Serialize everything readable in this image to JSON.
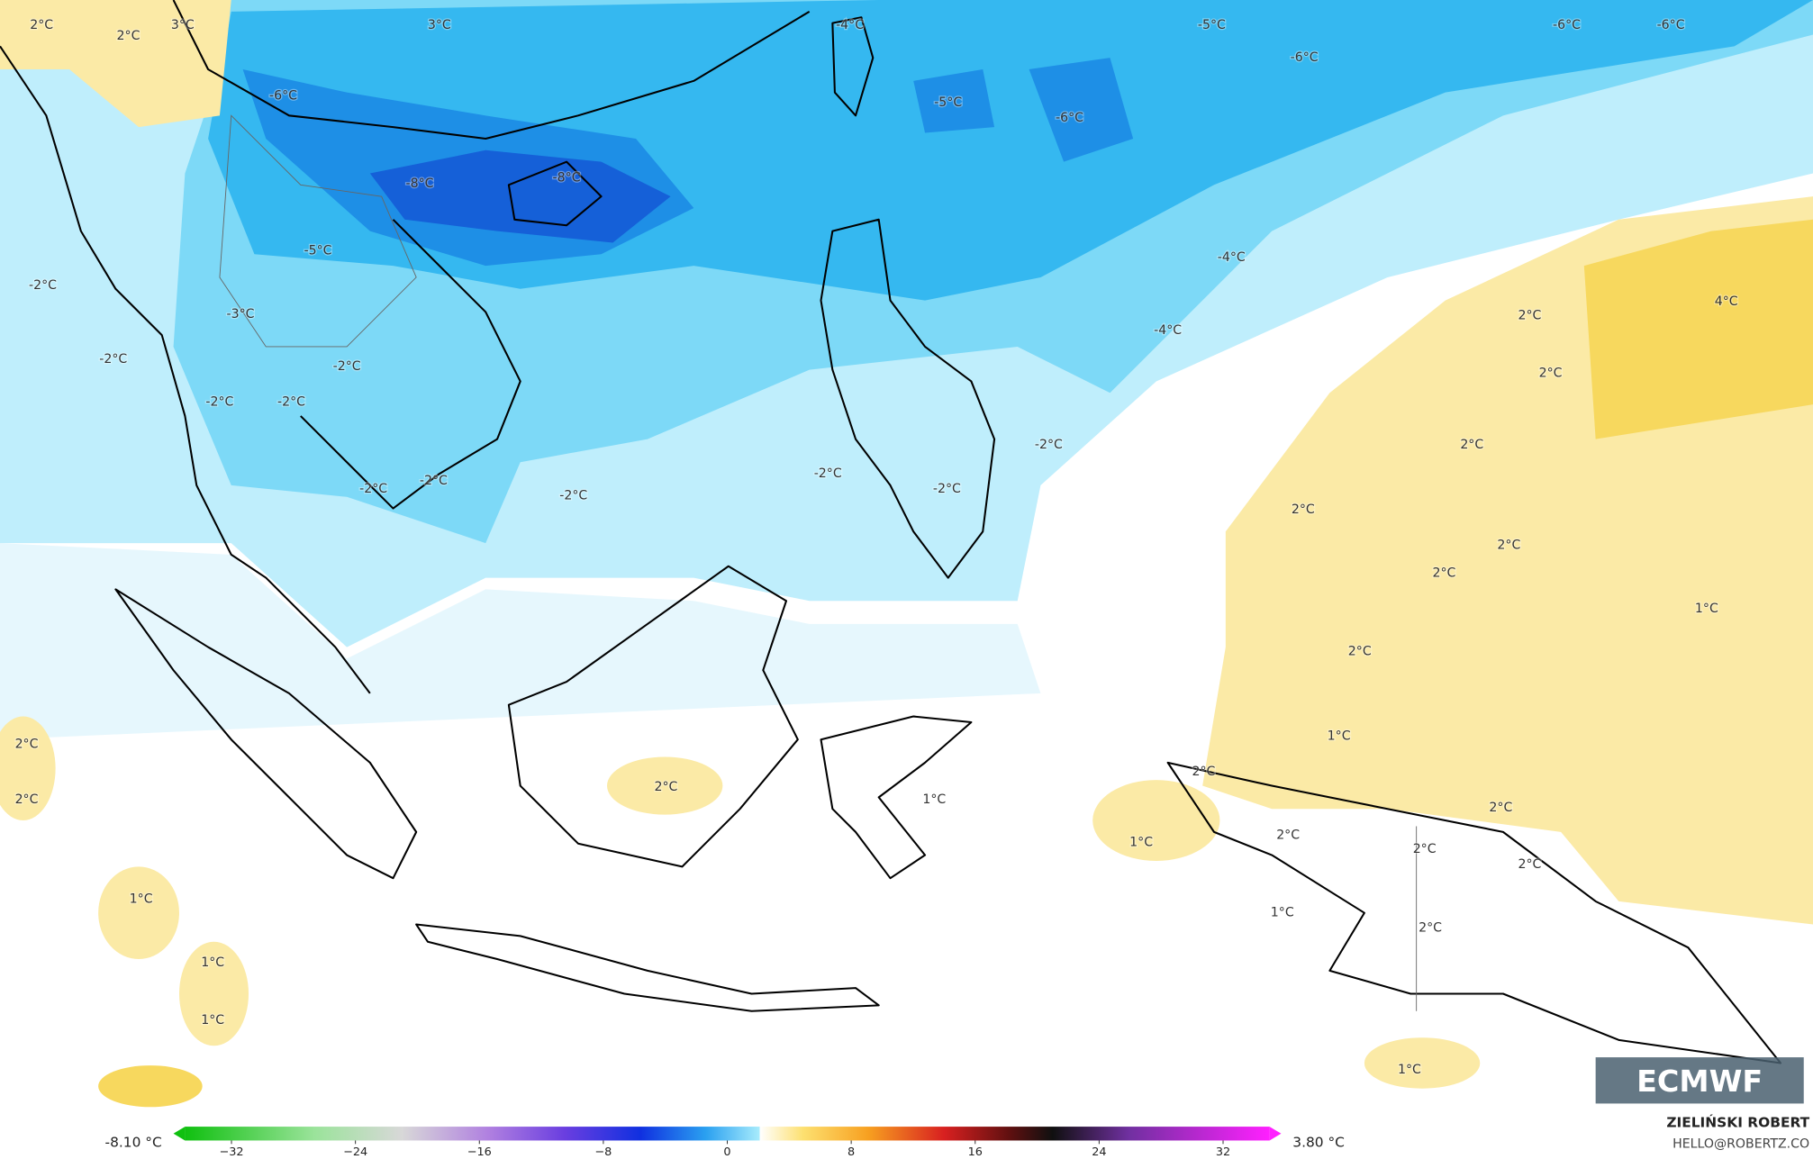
{
  "map": {
    "labels": [
      "2°C",
      "3°C",
      "2°C",
      "3°C",
      "-4°C",
      "-5°C",
      "-6°C",
      "-6°C",
      "-6°C",
      "-6°C",
      "-5°C",
      "-6°C",
      "-8°C",
      "-8°C",
      "-5°C",
      "-4°C",
      "-2°C",
      "-3°C",
      "4°C",
      "2°C",
      "-4°C",
      "2°C",
      "-2°C",
      "-2°C",
      "-2°C",
      "-2°C",
      "-2°C",
      "2°C",
      "-2°C",
      "-2°C",
      "-2°C",
      "-2°C",
      "-2°C",
      "2°C",
      "2°C",
      "2°C",
      "1°C",
      "2°C",
      "1°C",
      "2°C",
      "2°C",
      "2°C",
      "2°C",
      "1°C",
      "2°C",
      "1°C",
      "2°C",
      "2°C",
      "2°C",
      "1°C",
      "1°C",
      "2°C",
      "1°C",
      "1°C",
      "1°C"
    ],
    "logo": "ECMWF"
  },
  "colorbar": {
    "min_label": "-8.10 °C",
    "max_label": "3.80 °C",
    "range": [
      -35,
      35
    ],
    "ticks": [
      {
        "value": -32,
        "label": "−32"
      },
      {
        "value": -24,
        "label": "−24"
      },
      {
        "value": -16,
        "label": "−16"
      },
      {
        "value": -8,
        "label": "−8"
      },
      0,
      8,
      16,
      24,
      32
    ]
  },
  "credits": {
    "author": "ZIELIŃSKI ROBERT",
    "contact": "HELLO@ROBERTZ.CO"
  }
}
